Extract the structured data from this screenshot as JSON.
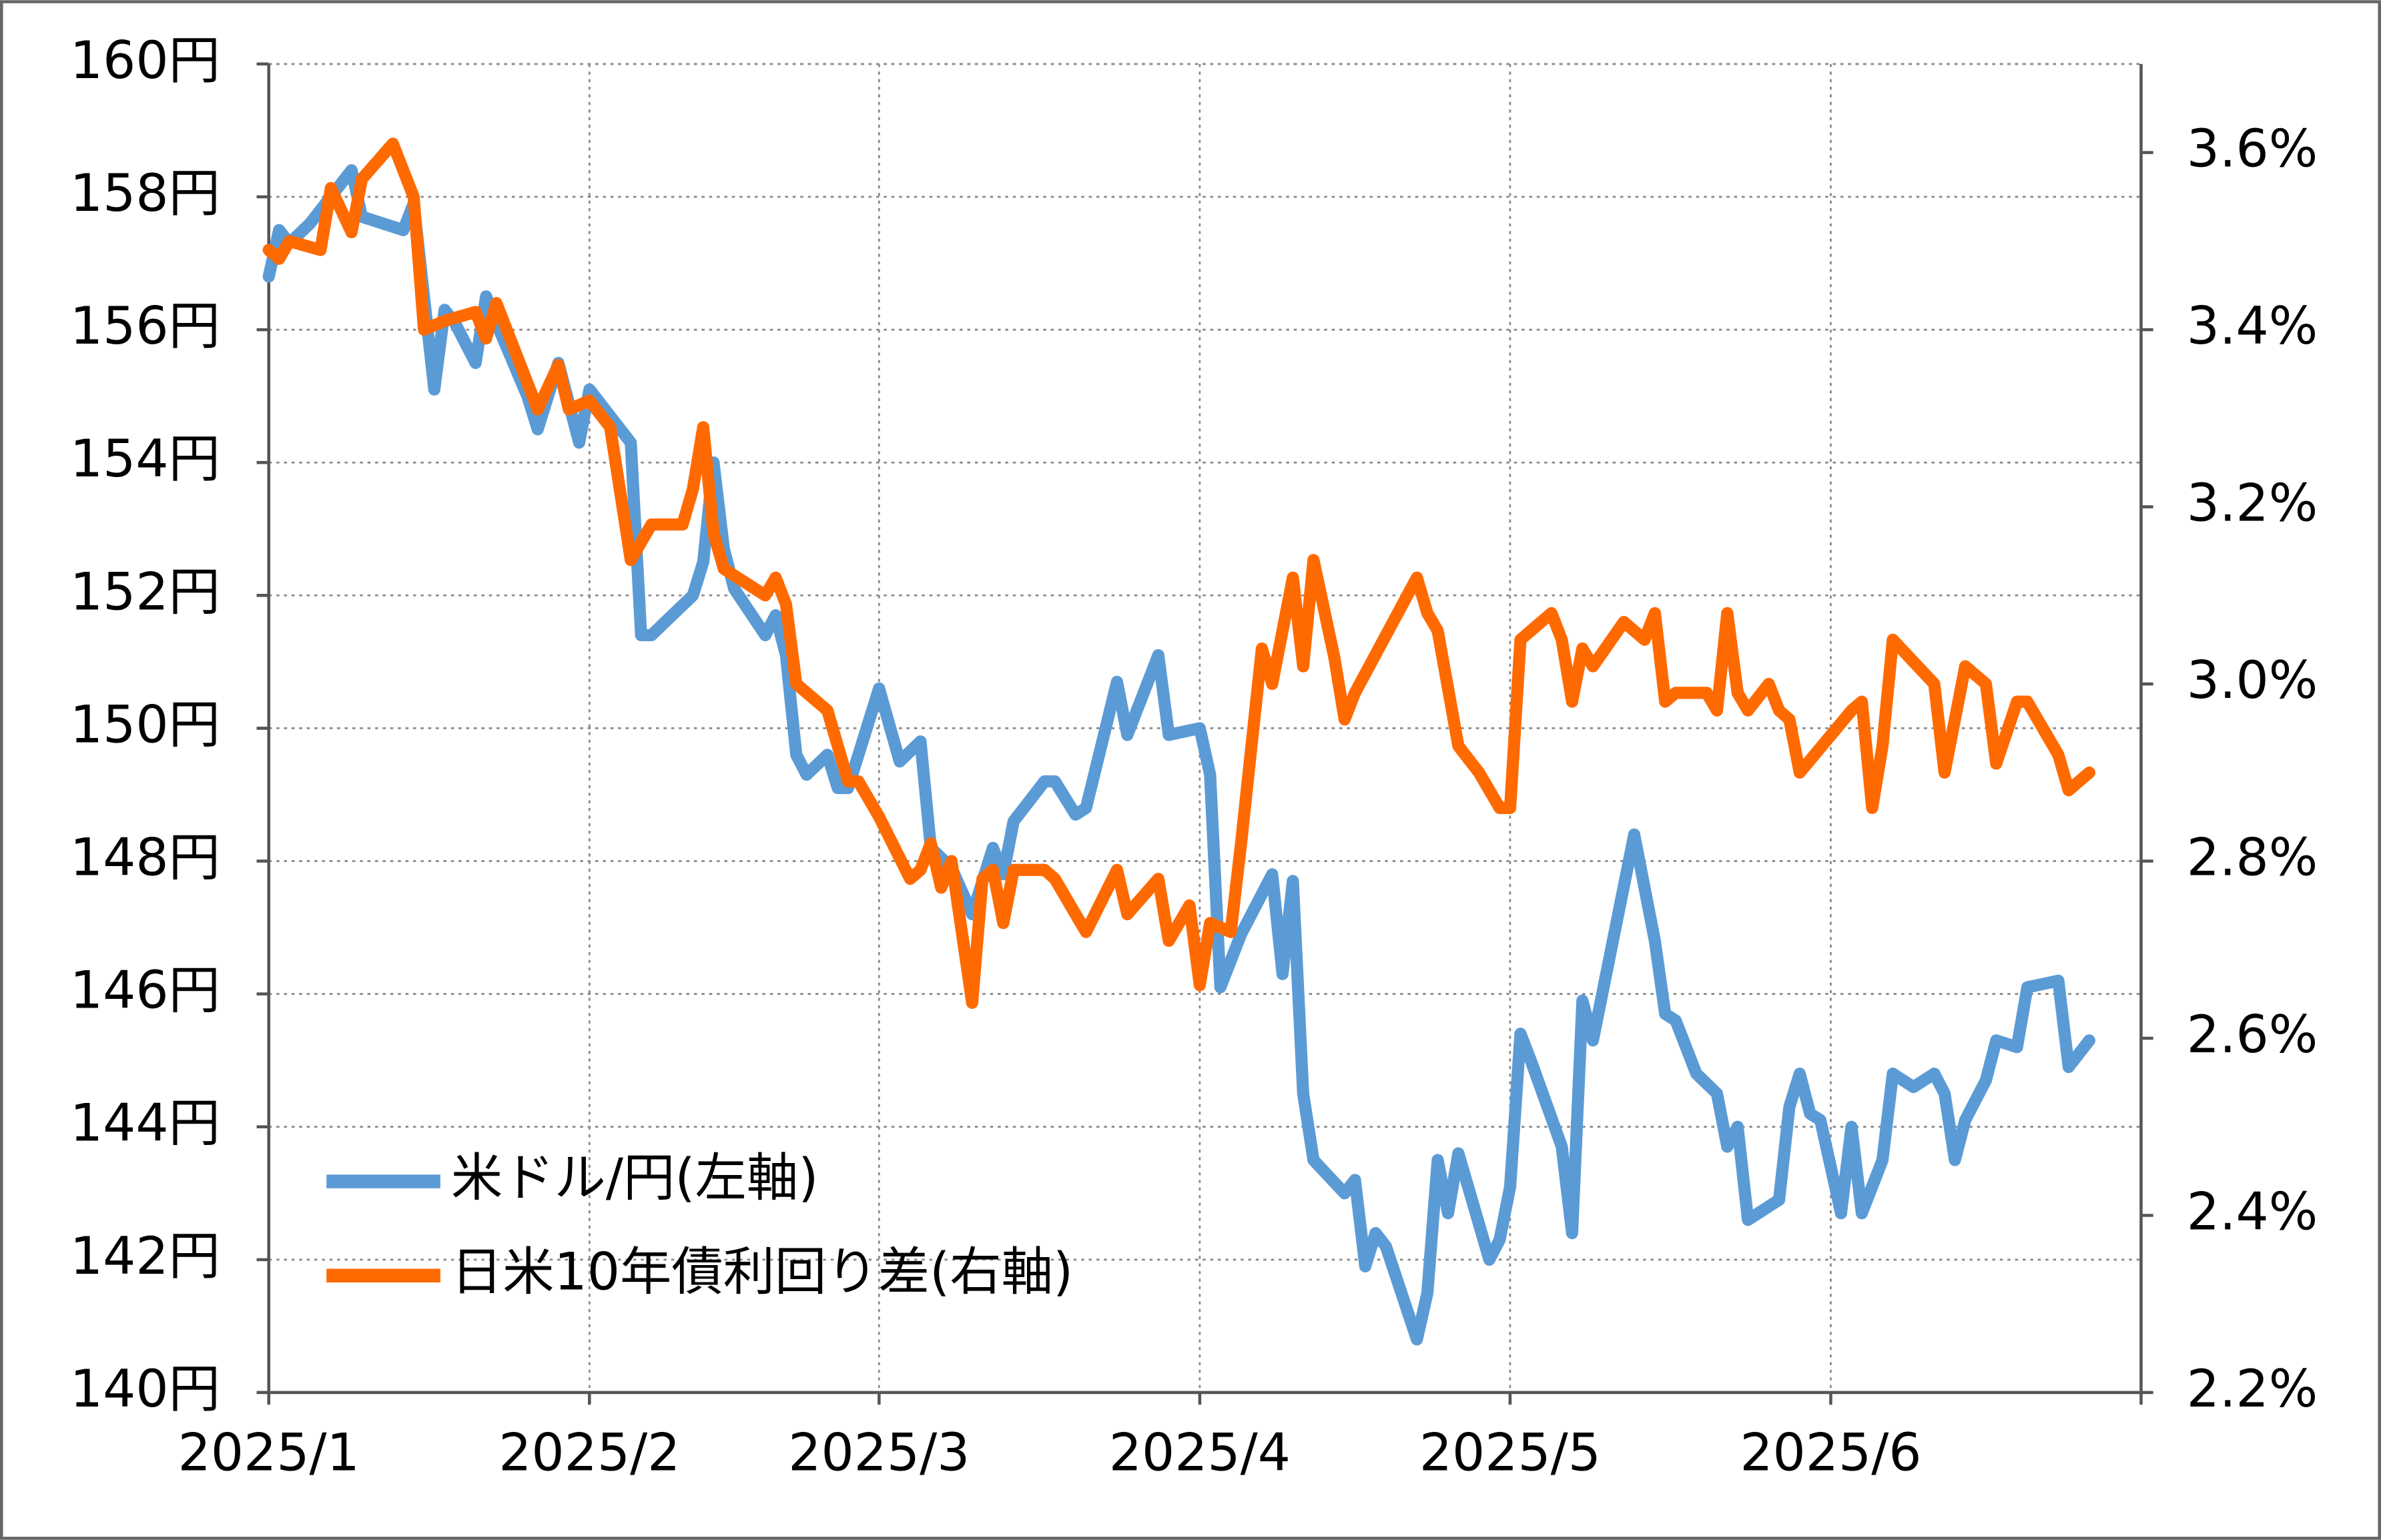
{
  "chart_data": {
    "type": "line",
    "xlim": [
      0,
      181
    ],
    "xticks": [
      {
        "value": 0,
        "label": "2025/1"
      },
      {
        "value": 31,
        "label": "2025/2"
      },
      {
        "value": 59,
        "label": "2025/3"
      },
      {
        "value": 90,
        "label": "2025/4"
      },
      {
        "value": 120,
        "label": "2025/5"
      },
      {
        "value": 151,
        "label": "2025/6"
      }
    ],
    "ylim": [
      140,
      160
    ],
    "yticks": [
      {
        "value": 140,
        "label": "140円"
      },
      {
        "value": 142,
        "label": "142円"
      },
      {
        "value": 144,
        "label": "144円"
      },
      {
        "value": 146,
        "label": "146円"
      },
      {
        "value": 148,
        "label": "148円"
      },
      {
        "value": 150,
        "label": "150円"
      },
      {
        "value": 152,
        "label": "152円"
      },
      {
        "value": 154,
        "label": "154円"
      },
      {
        "value": 156,
        "label": "156円"
      },
      {
        "value": 158,
        "label": "158円"
      },
      {
        "value": 160,
        "label": "160円"
      }
    ],
    "y2lim": [
      2.2,
      3.7
    ],
    "y2ticks": [
      {
        "value": 2.2,
        "label": "2.2%"
      },
      {
        "value": 2.4,
        "label": "2.4%"
      },
      {
        "value": 2.6,
        "label": "2.6%"
      },
      {
        "value": 2.8,
        "label": "2.8%"
      },
      {
        "value": 3.0,
        "label": "3.0%"
      },
      {
        "value": 3.2,
        "label": "3.2%"
      },
      {
        "value": 3.4,
        "label": "3.4%"
      },
      {
        "value": 3.6,
        "label": "3.6%"
      }
    ],
    "grid": true,
    "legend": "lower left",
    "series": [
      {
        "name": "米ドル/円(左軸)",
        "color": "#5b9bd5",
        "x": [
          0,
          1,
          2,
          4,
          8,
          9,
          13,
          14,
          16,
          17,
          18,
          20,
          21,
          22,
          25,
          26,
          28,
          30,
          31,
          33,
          35,
          36,
          37,
          41,
          42,
          43,
          44,
          45,
          48,
          49,
          50,
          51,
          52,
          54,
          55,
          56,
          59,
          61,
          63,
          64,
          66,
          68,
          70,
          71,
          72,
          75,
          76,
          78,
          79,
          82,
          83,
          86,
          87,
          90,
          91,
          92,
          94,
          97,
          98,
          99,
          100,
          101,
          104,
          105,
          106,
          107,
          108,
          111,
          112,
          113,
          114,
          115,
          118,
          119,
          120,
          121,
          122,
          125,
          126,
          127,
          128,
          132,
          134,
          135,
          136,
          138,
          140,
          141,
          142,
          143,
          146,
          147,
          148,
          149,
          150,
          152,
          153,
          154,
          156,
          157,
          159,
          161,
          162,
          163,
          164,
          166,
          167,
          169,
          170,
          173,
          174,
          176
        ],
        "values": [
          156.8,
          157.5,
          157.3,
          157.6,
          158.4,
          157.7,
          157.5,
          157.9,
          155.1,
          156.3,
          156.1,
          155.5,
          156.5,
          156.1,
          155.0,
          154.5,
          155.5,
          154.3,
          155.1,
          154.7,
          154.3,
          151.4,
          151.4,
          152.0,
          152.5,
          154.0,
          152.7,
          152.1,
          151.4,
          151.7,
          151.1,
          149.6,
          149.3,
          149.6,
          149.1,
          149.1,
          150.6,
          149.5,
          149.8,
          148.2,
          147.9,
          147.2,
          148.2,
          147.8,
          148.6,
          149.2,
          149.2,
          148.7,
          148.8,
          150.7,
          149.9,
          151.1,
          149.9,
          150.0,
          149.3,
          146.1,
          146.9,
          147.8,
          146.3,
          147.7,
          144.5,
          143.5,
          143.0,
          143.2,
          141.9,
          142.4,
          142.2,
          140.8,
          141.5,
          143.5,
          142.7,
          143.6,
          142.0,
          142.3,
          143.1,
          145.4,
          145.0,
          143.7,
          142.4,
          145.9,
          145.3,
          148.4,
          146.8,
          145.7,
          145.6,
          144.8,
          144.5,
          143.7,
          144.0,
          142.6,
          142.9,
          144.3,
          144.8,
          144.2,
          144.1,
          142.7,
          144.0,
          142.7,
          143.5,
          144.8,
          144.6,
          144.8,
          144.5,
          143.5,
          144.1,
          144.7,
          145.3,
          145.2,
          146.1,
          146.2,
          144.9,
          145.3
        ]
      },
      {
        "name": "日米10年債利回り差(右軸)",
        "color": "#ff6a00",
        "axis": "y2",
        "x": [
          0,
          1,
          2,
          5,
          6,
          8,
          9,
          12,
          14,
          15,
          17,
          20,
          21,
          22,
          26,
          28,
          29,
          31,
          33,
          35,
          37,
          40,
          41,
          42,
          43,
          44,
          48,
          49,
          50,
          51,
          54,
          56,
          57,
          59,
          62,
          63,
          64,
          65,
          66,
          68,
          69,
          70,
          71,
          72,
          75,
          76,
          78,
          79,
          82,
          83,
          86,
          87,
          89,
          90,
          91,
          93,
          94,
          96,
          97,
          99,
          100,
          101,
          103,
          104,
          105,
          111,
          112,
          113,
          115,
          117,
          119,
          120,
          121,
          124,
          125,
          126,
          127,
          128,
          131,
          133,
          134,
          135,
          136,
          139,
          140,
          141,
          142,
          143,
          145,
          146,
          147,
          148,
          153,
          154,
          155,
          156,
          157,
          161,
          162,
          164,
          166,
          167,
          169,
          170,
          173,
          174,
          176
        ],
        "values": [
          3.49,
          3.48,
          3.5,
          3.49,
          3.56,
          3.51,
          3.57,
          3.61,
          3.55,
          3.4,
          3.41,
          3.42,
          3.39,
          3.43,
          3.31,
          3.36,
          3.31,
          3.32,
          3.29,
          3.14,
          3.18,
          3.18,
          3.22,
          3.29,
          3.17,
          3.13,
          3.1,
          3.12,
          3.09,
          3.0,
          2.97,
          2.89,
          2.89,
          2.85,
          2.78,
          2.79,
          2.82,
          2.77,
          2.8,
          2.64,
          2.78,
          2.79,
          2.73,
          2.79,
          2.79,
          2.78,
          2.74,
          2.72,
          2.79,
          2.74,
          2.78,
          2.71,
          2.75,
          2.66,
          2.73,
          2.72,
          2.82,
          3.04,
          3.0,
          3.12,
          3.02,
          3.14,
          3.03,
          2.96,
          2.99,
          3.12,
          3.08,
          3.06,
          2.93,
          2.9,
          2.86,
          2.86,
          3.05,
          3.08,
          3.05,
          2.98,
          3.04,
          3.02,
          3.07,
          3.05,
          3.08,
          2.98,
          2.99,
          2.99,
          2.97,
          3.08,
          2.99,
          2.97,
          3.0,
          2.97,
          2.96,
          2.9,
          2.97,
          2.98,
          2.86,
          2.93,
          3.05,
          3.0,
          2.9,
          3.02,
          3.0,
          2.91,
          2.98,
          2.98,
          2.92,
          2.88,
          2.9
        ]
      }
    ]
  }
}
